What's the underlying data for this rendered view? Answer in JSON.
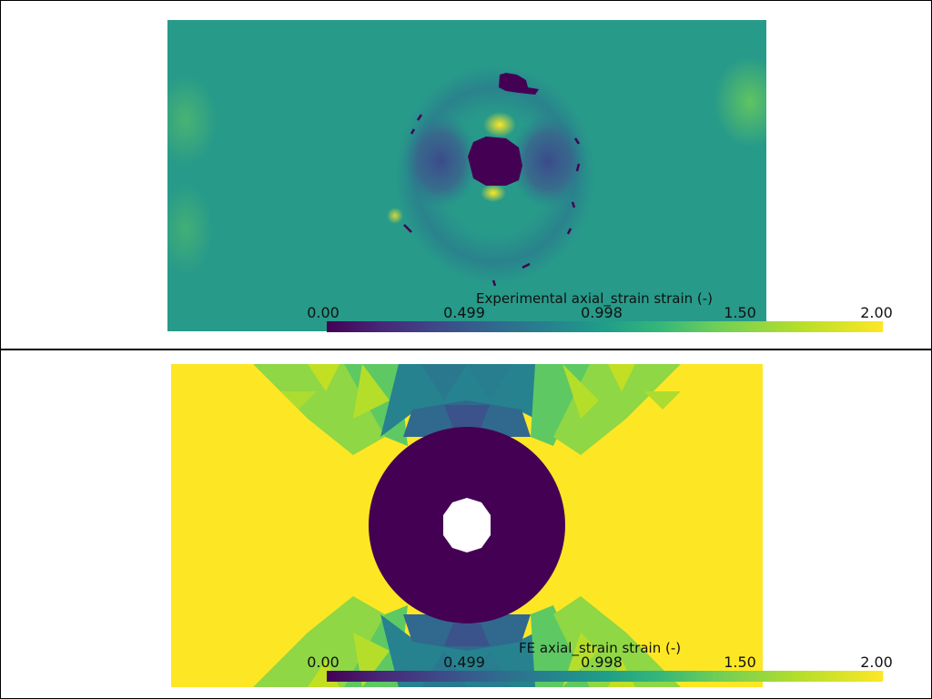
{
  "panels": [
    {
      "colorbar": {
        "title": "Experimental axial_strain strain (-)",
        "ticks": [
          "0.00",
          "0.499",
          "0.998",
          "1.50",
          "2.00"
        ]
      }
    },
    {
      "colorbar": {
        "title": "FE axial_strain strain (-)",
        "ticks": [
          "0.00",
          "0.499",
          "0.998",
          "1.50",
          "2.00"
        ]
      }
    }
  ],
  "colors": {
    "viridis_min": "#440154",
    "viridis_mid": "#21918c",
    "viridis_max": "#fde725",
    "background": "#ffffff",
    "frame": "#000000"
  }
}
